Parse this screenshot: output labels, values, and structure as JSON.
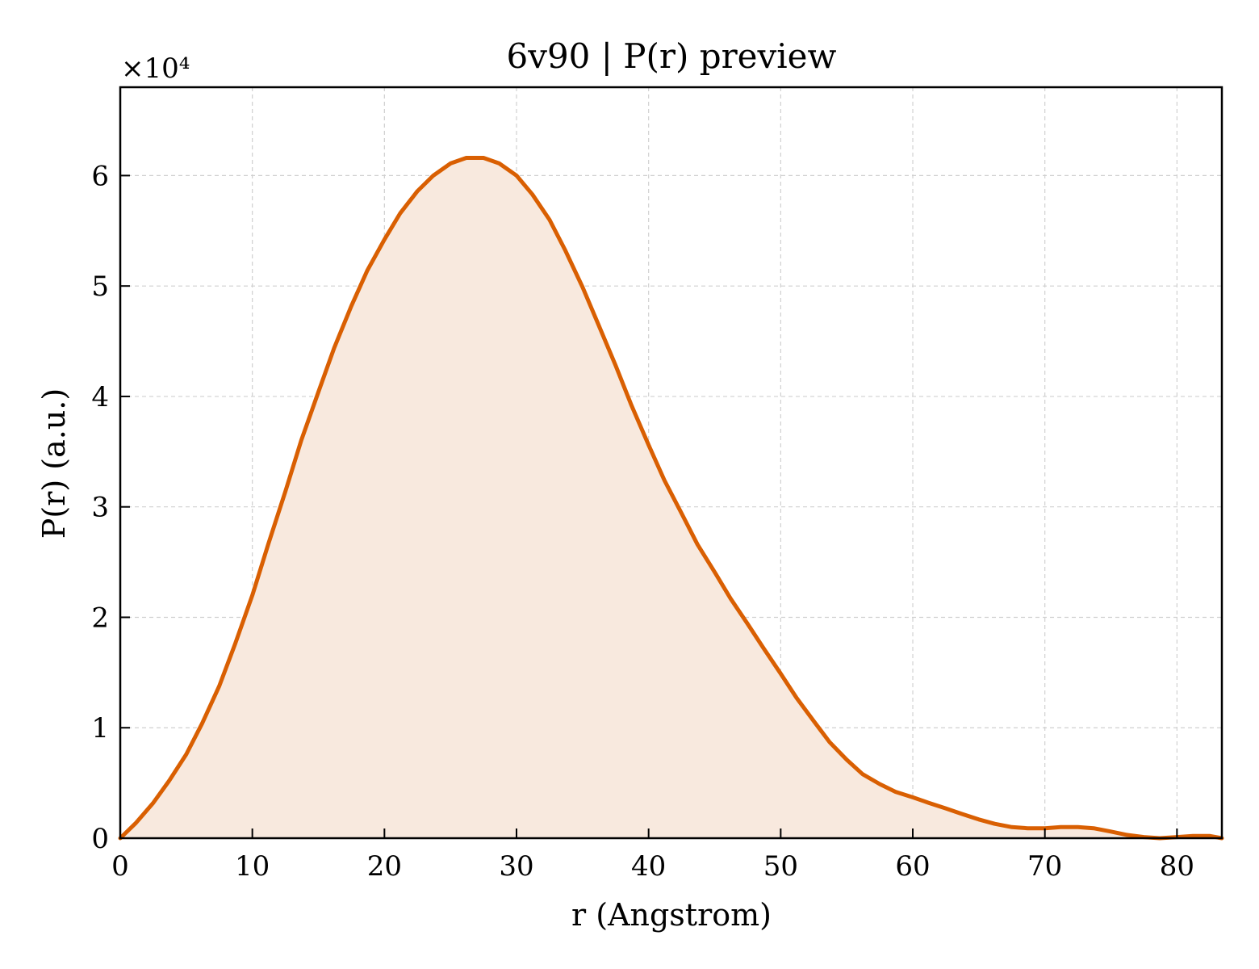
{
  "chart_data": {
    "type": "area",
    "title": "6v90 | P(r) preview",
    "xlabel": "r (Angstrom)",
    "ylabel": "P(r) (a.u.)",
    "y_multiplier": "×10⁴",
    "xlim": [
      0,
      83.4
    ],
    "ylim": [
      0,
      6.8
    ],
    "xticks": [
      0,
      10,
      20,
      30,
      40,
      50,
      60,
      70,
      80
    ],
    "yticks": [
      0,
      1,
      2,
      3,
      4,
      5,
      6
    ],
    "grid": true,
    "line_color": "#d95f02",
    "fill_color": "#f8e9de",
    "series": [
      {
        "x": [
          0,
          1.2,
          2.5,
          3.7,
          5.0,
          6.2,
          7.5,
          8.7,
          10.0,
          11.2,
          12.5,
          13.7,
          15.0,
          16.2,
          17.5,
          18.7,
          20.0,
          21.2,
          22.5,
          23.7,
          25.0,
          26.2,
          27.5,
          28.7,
          30.0,
          31.2,
          32.5,
          33.7,
          35.0,
          36.2,
          37.5,
          38.7,
          40.0,
          41.2,
          42.5,
          43.7,
          45.0,
          46.2,
          47.5,
          48.7,
          50.0,
          51.2,
          52.5,
          53.7,
          55.0,
          56.2,
          57.5,
          58.7,
          60.0,
          61.2,
          62.5,
          63.7,
          65.0,
          66.2,
          67.5,
          68.7,
          70.0,
          71.2,
          72.5,
          73.7,
          75.0,
          76.2,
          77.5,
          78.7,
          80.0,
          81.2,
          82.5,
          83.4
        ],
        "y": [
          0.0,
          0.14,
          0.32,
          0.52,
          0.76,
          1.04,
          1.38,
          1.76,
          2.2,
          2.66,
          3.14,
          3.6,
          4.04,
          4.44,
          4.82,
          5.14,
          5.42,
          5.66,
          5.86,
          6.0,
          6.11,
          6.16,
          6.16,
          6.11,
          6.0,
          5.83,
          5.6,
          5.32,
          4.99,
          4.65,
          4.28,
          3.92,
          3.56,
          3.24,
          2.94,
          2.66,
          2.41,
          2.17,
          1.94,
          1.72,
          1.49,
          1.27,
          1.06,
          0.87,
          0.71,
          0.58,
          0.49,
          0.42,
          0.37,
          0.32,
          0.27,
          0.22,
          0.17,
          0.13,
          0.1,
          0.09,
          0.09,
          0.1,
          0.1,
          0.09,
          0.06,
          0.03,
          0.01,
          0.0,
          0.01,
          0.02,
          0.02,
          0.0
        ]
      }
    ]
  }
}
